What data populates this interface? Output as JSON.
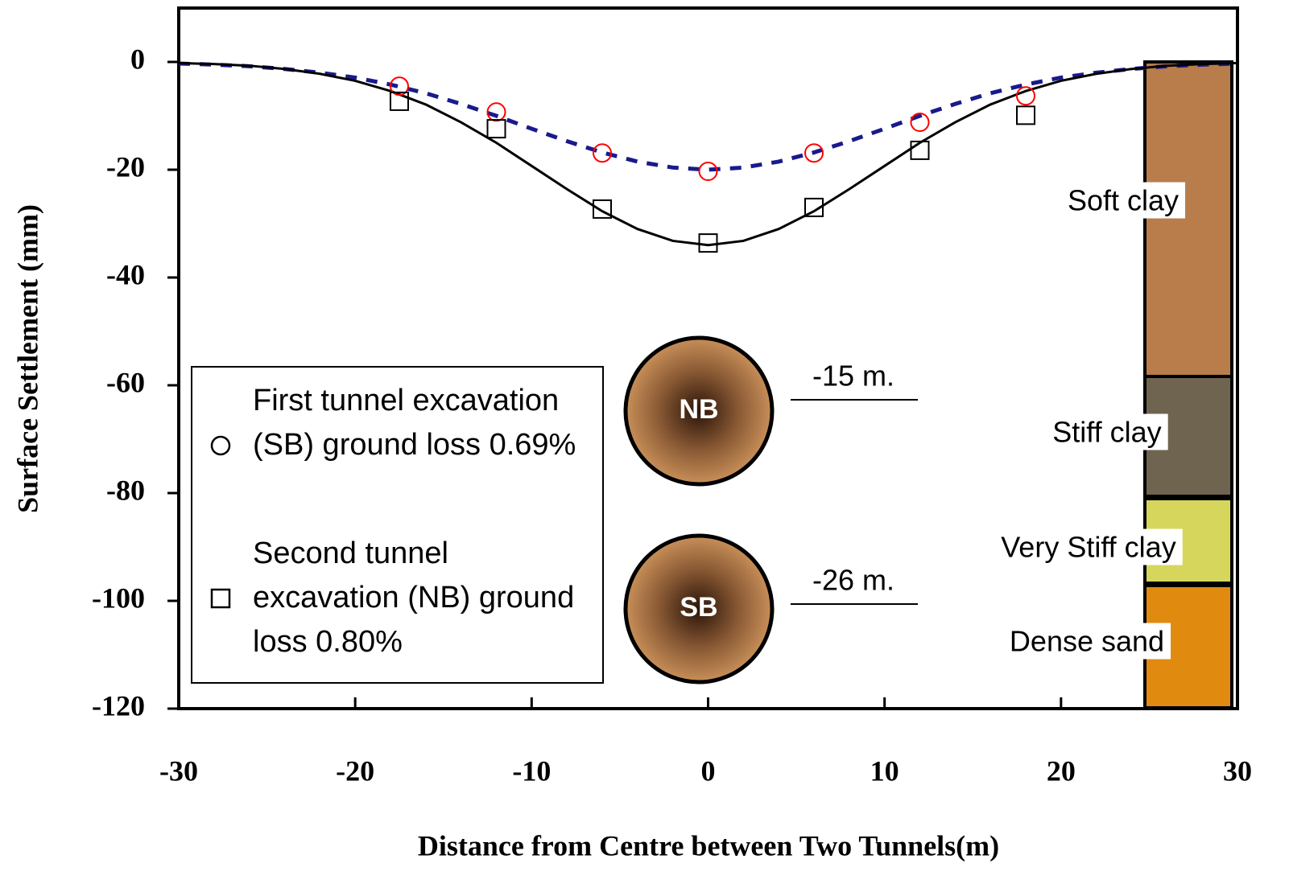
{
  "chart_data": {
    "type": "line",
    "xlabel": "Distance from Centre between Two Tunnels(m)",
    "ylabel": "Surface Settlement (mm)",
    "xlim": [
      -30,
      30
    ],
    "xticks": [
      -30,
      -20,
      -10,
      0,
      10,
      20,
      30
    ],
    "ylim": [
      -120,
      10
    ],
    "yticks": [
      -120,
      -100,
      -80,
      -60,
      -40,
      -20,
      0
    ],
    "x": [
      -30,
      -28,
      -26,
      -24,
      -22,
      -20,
      -18,
      -16,
      -14,
      -12,
      -10,
      -8,
      -6,
      -4,
      -2,
      0,
      2,
      4,
      6,
      8,
      10,
      12,
      14,
      16,
      18,
      20,
      22,
      24,
      26,
      28,
      30
    ],
    "series": [
      {
        "color": "#1a1a8c",
        "dashed": true,
        "values": [
          -0.3,
          -0.5,
          -0.8,
          -1.3,
          -2.0,
          -2.9,
          -4.2,
          -5.8,
          -7.8,
          -10.0,
          -12.4,
          -14.7,
          -16.8,
          -18.5,
          -19.6,
          -20,
          -19.6,
          -18.5,
          -16.8,
          -14.7,
          -12.4,
          -10.0,
          -7.8,
          -5.8,
          -4.2,
          -2.9,
          -2.0,
          -1.3,
          -0.8,
          -0.5,
          -0.3
        ]
      },
      {
        "color": "#000000",
        "dashed": false,
        "values": [
          -0.2,
          -0.4,
          -0.7,
          -1.3,
          -2.2,
          -3.5,
          -5.4,
          -7.9,
          -11.2,
          -15.0,
          -19.3,
          -23.6,
          -27.7,
          -31.0,
          -33.2,
          -34,
          -33.2,
          -31.0,
          -27.7,
          -23.6,
          -19.3,
          -15.0,
          -11.2,
          -7.9,
          -5.4,
          -3.5,
          -2.2,
          -1.3,
          -0.7,
          -0.4,
          -0.2
        ]
      }
    ],
    "points": [
      {
        "name": "First tunnel excavation (SB) ground loss 0.69%",
        "marker": "circle",
        "color": "#ff0000",
        "x": [
          -17.5,
          -12,
          -6,
          0,
          6,
          12,
          18
        ],
        "values": [
          -4.5,
          -9.3,
          -16.9,
          -20.3,
          -16.9,
          -11.2,
          -6.3
        ]
      },
      {
        "name": "Second tunnel excavation (NB) ground loss 0.80%",
        "marker": "square",
        "color": "#000000",
        "x": [
          -17.5,
          -12,
          -6,
          0,
          6,
          12,
          18
        ],
        "values": [
          -7.3,
          -12.4,
          -27.3,
          -33.6,
          -27.0,
          -16.4,
          -9.9
        ]
      }
    ],
    "tunnels": [
      {
        "label": "NB",
        "depth_label": "-15 m."
      },
      {
        "label": "SB",
        "depth_label": "-26 m."
      }
    ],
    "soil_layers": [
      {
        "label": "Soft clay",
        "color": "#b87d4b"
      },
      {
        "label": "Stiff clay",
        "color": "#6e6450"
      },
      {
        "label": "Very Stiff clay",
        "color": "#d6d65c"
      },
      {
        "label": "Dense sand",
        "color": "#e08a10"
      }
    ]
  }
}
